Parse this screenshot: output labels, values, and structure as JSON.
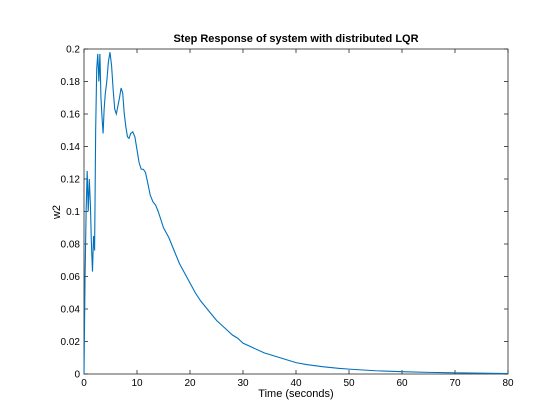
{
  "chart_data": {
    "type": "line",
    "title": "Step Response of system with distributed LQR",
    "xlabel": "Time (seconds)",
    "ylabel": "w2",
    "xlim": [
      0,
      80
    ],
    "ylim": [
      0,
      0.2
    ],
    "xticks": [
      0,
      10,
      20,
      30,
      40,
      50,
      60,
      70,
      80
    ],
    "yticks": [
      0,
      0.02,
      0.04,
      0.06,
      0.08,
      0.1,
      0.12,
      0.14,
      0.16,
      0.18,
      0.2
    ],
    "ytick_labels": [
      "0",
      "0.02",
      "0.04",
      "0.06",
      "0.08",
      "0.1",
      "0.12",
      "0.14",
      "0.16",
      "0.18",
      "0.2"
    ],
    "grid": false,
    "line_color": "#0072bd",
    "series": [
      {
        "x": [
          0,
          0.2,
          0.4,
          0.6,
          0.8,
          1.0,
          1.2,
          1.4,
          1.6,
          1.8,
          2.0,
          2.2,
          2.4,
          2.6,
          2.8,
          3.0,
          3.2,
          3.4,
          3.6,
          3.8,
          4.0,
          4.3,
          4.6,
          4.9,
          5.2,
          5.5,
          5.8,
          6.1,
          6.4,
          6.7,
          7.0,
          7.3,
          7.6,
          7.9,
          8.2,
          8.5,
          8.8,
          9.2,
          9.6,
          10.0,
          10.4,
          10.8,
          11.2,
          11.6,
          12.0,
          12.5,
          13.0,
          13.5,
          14.0,
          14.5,
          15.0,
          15.5,
          16.0,
          17.0,
          18.0,
          19.0,
          20.0,
          21.0,
          22.0,
          23.0,
          24.0,
          25.0,
          26.0,
          27.0,
          28.0,
          29.0,
          30.0,
          32.0,
          34.0,
          36.0,
          38.0,
          40.0,
          42.0,
          45.0,
          48.0,
          50.0,
          55.0,
          60.0,
          65.0,
          70.0,
          75.0,
          80.0
        ],
        "y": [
          0,
          0.06,
          0.1,
          0.125,
          0.1,
          0.12,
          0.105,
          0.08,
          0.063,
          0.085,
          0.076,
          0.15,
          0.188,
          0.197,
          0.18,
          0.197,
          0.17,
          0.158,
          0.148,
          0.163,
          0.172,
          0.18,
          0.192,
          0.198,
          0.19,
          0.175,
          0.163,
          0.16,
          0.165,
          0.17,
          0.176,
          0.173,
          0.16,
          0.152,
          0.146,
          0.145,
          0.148,
          0.149,
          0.146,
          0.138,
          0.13,
          0.126,
          0.126,
          0.124,
          0.118,
          0.11,
          0.106,
          0.104,
          0.1,
          0.095,
          0.09,
          0.087,
          0.084,
          0.076,
          0.068,
          0.062,
          0.056,
          0.05,
          0.045,
          0.041,
          0.037,
          0.033,
          0.03,
          0.027,
          0.024,
          0.022,
          0.019,
          0.016,
          0.013,
          0.011,
          0.009,
          0.007,
          0.0058,
          0.0045,
          0.0035,
          0.003,
          0.002,
          0.0014,
          0.001,
          0.0007,
          0.0005,
          0.0003
        ]
      }
    ]
  }
}
